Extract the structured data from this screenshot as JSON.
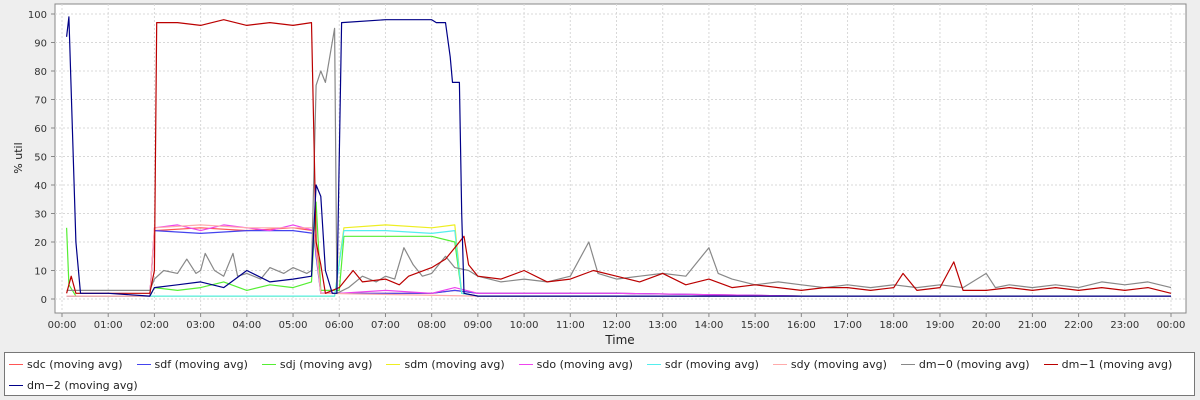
{
  "chart_data": {
    "type": "line",
    "title": "",
    "xlabel": "Time",
    "ylabel": "% util",
    "ylim": [
      0,
      100
    ],
    "yticks": [
      0,
      10,
      20,
      30,
      40,
      50,
      60,
      70,
      80,
      90,
      100
    ],
    "xlim_hours": [
      0,
      24
    ],
    "xticks": [
      "00:00",
      "01:00",
      "02:00",
      "03:00",
      "04:00",
      "05:00",
      "06:00",
      "07:00",
      "08:00",
      "09:00",
      "10:00",
      "11:00",
      "12:00",
      "13:00",
      "14:00",
      "15:00",
      "16:00",
      "17:00",
      "18:00",
      "19:00",
      "20:00",
      "21:00",
      "22:00",
      "23:00",
      "00:00"
    ],
    "grid": true,
    "legend_position": "bottom",
    "series": [
      {
        "name": "sdc (moving avg)",
        "color": "#ff5555",
        "points": [
          [
            0.1,
            1
          ],
          [
            1.9,
            1
          ],
          [
            2.0,
            24
          ],
          [
            3.0,
            25
          ],
          [
            4.0,
            24
          ],
          [
            5.0,
            25
          ],
          [
            5.45,
            24
          ],
          [
            5.5,
            20
          ],
          [
            5.6,
            2
          ],
          [
            6.0,
            2
          ],
          [
            7.0,
            2
          ],
          [
            8.0,
            2
          ],
          [
            8.5,
            3
          ],
          [
            9.0,
            2
          ],
          [
            12.0,
            2
          ],
          [
            16.0,
            1
          ],
          [
            20.0,
            1
          ],
          [
            24.0,
            1
          ]
        ]
      },
      {
        "name": "sdf (moving avg)",
        "color": "#4444ee",
        "points": [
          [
            0.1,
            1
          ],
          [
            1.9,
            1
          ],
          [
            2.0,
            24
          ],
          [
            3.0,
            23
          ],
          [
            4.0,
            24
          ],
          [
            5.0,
            24
          ],
          [
            5.45,
            23
          ],
          [
            5.5,
            15
          ],
          [
            5.6,
            2
          ],
          [
            6.0,
            2
          ],
          [
            7.0,
            2
          ],
          [
            8.0,
            2
          ],
          [
            8.5,
            3
          ],
          [
            9.0,
            2
          ],
          [
            12.0,
            2
          ],
          [
            16.0,
            1
          ],
          [
            20.0,
            1
          ],
          [
            24.0,
            1
          ]
        ]
      },
      {
        "name": "sdj (moving avg)",
        "color": "#55ee33",
        "points": [
          [
            0.1,
            25
          ],
          [
            0.15,
            5
          ],
          [
            0.3,
            1
          ],
          [
            1.9,
            1
          ],
          [
            2.0,
            4
          ],
          [
            2.5,
            3
          ],
          [
            3.0,
            4
          ],
          [
            3.5,
            6
          ],
          [
            4.0,
            3
          ],
          [
            4.5,
            5
          ],
          [
            5.0,
            4
          ],
          [
            5.4,
            6
          ],
          [
            5.5,
            34
          ],
          [
            5.6,
            3
          ],
          [
            6.0,
            3
          ],
          [
            6.1,
            22
          ],
          [
            7.0,
            22
          ],
          [
            8.0,
            22
          ],
          [
            8.5,
            20
          ],
          [
            8.65,
            2
          ],
          [
            9.0,
            1
          ],
          [
            12.0,
            1
          ],
          [
            16.0,
            1
          ],
          [
            20.0,
            1
          ],
          [
            24.0,
            1
          ]
        ]
      },
      {
        "name": "sdm (moving avg)",
        "color": "#eeee22",
        "points": [
          [
            0.1,
            1
          ],
          [
            5.9,
            1
          ],
          [
            6.1,
            25
          ],
          [
            7.0,
            26
          ],
          [
            8.0,
            25
          ],
          [
            8.5,
            26
          ],
          [
            8.65,
            2
          ],
          [
            9.0,
            1
          ],
          [
            24.0,
            1
          ]
        ]
      },
      {
        "name": "sdo (moving avg)",
        "color": "#ee44ee",
        "points": [
          [
            0.1,
            1
          ],
          [
            1.9,
            1
          ],
          [
            2.0,
            25
          ],
          [
            2.5,
            26
          ],
          [
            3.0,
            24
          ],
          [
            3.5,
            26
          ],
          [
            4.0,
            25
          ],
          [
            4.5,
            24
          ],
          [
            5.0,
            26
          ],
          [
            5.45,
            24
          ],
          [
            5.6,
            2
          ],
          [
            6.0,
            2
          ],
          [
            7.0,
            3
          ],
          [
            8.0,
            2
          ],
          [
            8.5,
            4
          ],
          [
            9.0,
            2
          ],
          [
            12.0,
            2
          ],
          [
            16.0,
            1
          ],
          [
            20.0,
            1
          ],
          [
            24.0,
            1
          ]
        ]
      },
      {
        "name": "sdr (moving avg)",
        "color": "#55eeee",
        "points": [
          [
            0.1,
            1
          ],
          [
            5.9,
            1
          ],
          [
            6.1,
            24
          ],
          [
            7.0,
            24
          ],
          [
            8.0,
            23
          ],
          [
            8.5,
            24
          ],
          [
            8.65,
            2
          ],
          [
            9.0,
            1
          ],
          [
            24.0,
            1
          ]
        ]
      },
      {
        "name": "sdy (moving avg)",
        "color": "#ffaaaa",
        "points": [
          [
            0.1,
            1
          ],
          [
            1.9,
            1
          ],
          [
            2.0,
            25
          ],
          [
            3.0,
            26
          ],
          [
            4.0,
            25
          ],
          [
            5.0,
            25
          ],
          [
            5.45,
            25
          ],
          [
            5.6,
            2
          ],
          [
            9.0,
            1
          ],
          [
            24.0,
            1
          ]
        ]
      },
      {
        "name": "dm−0 (moving avg)",
        "color": "#888888",
        "points": [
          [
            0.1,
            3
          ],
          [
            1.9,
            3
          ],
          [
            2.0,
            7
          ],
          [
            2.2,
            10
          ],
          [
            2.5,
            9
          ],
          [
            2.7,
            14
          ],
          [
            2.9,
            9
          ],
          [
            3.0,
            10
          ],
          [
            3.1,
            16
          ],
          [
            3.3,
            10
          ],
          [
            3.5,
            8
          ],
          [
            3.7,
            16
          ],
          [
            3.8,
            8
          ],
          [
            4.0,
            9
          ],
          [
            4.3,
            7
          ],
          [
            4.5,
            11
          ],
          [
            4.8,
            9
          ],
          [
            5.0,
            11
          ],
          [
            5.3,
            9
          ],
          [
            5.4,
            10
          ],
          [
            5.5,
            75
          ],
          [
            5.6,
            80
          ],
          [
            5.7,
            76
          ],
          [
            5.9,
            95
          ],
          [
            5.95,
            2
          ],
          [
            6.2,
            4
          ],
          [
            6.5,
            8
          ],
          [
            6.8,
            6
          ],
          [
            7.0,
            8
          ],
          [
            7.2,
            7
          ],
          [
            7.4,
            18
          ],
          [
            7.6,
            12
          ],
          [
            7.8,
            8
          ],
          [
            8.0,
            9
          ],
          [
            8.3,
            15
          ],
          [
            8.5,
            11
          ],
          [
            8.8,
            10
          ],
          [
            9.0,
            8
          ],
          [
            9.5,
            6
          ],
          [
            10.0,
            7
          ],
          [
            10.5,
            6
          ],
          [
            11.0,
            8
          ],
          [
            11.4,
            20
          ],
          [
            11.6,
            9
          ],
          [
            12.0,
            7
          ],
          [
            12.5,
            8
          ],
          [
            13.0,
            9
          ],
          [
            13.5,
            8
          ],
          [
            14.0,
            18
          ],
          [
            14.2,
            9
          ],
          [
            14.5,
            7
          ],
          [
            15.0,
            5
          ],
          [
            15.5,
            6
          ],
          [
            16.0,
            5
          ],
          [
            16.5,
            4
          ],
          [
            17.0,
            5
          ],
          [
            17.5,
            4
          ],
          [
            18.0,
            5
          ],
          [
            18.5,
            4
          ],
          [
            19.0,
            5
          ],
          [
            19.5,
            4
          ],
          [
            20.0,
            9
          ],
          [
            20.2,
            4
          ],
          [
            20.5,
            5
          ],
          [
            21.0,
            4
          ],
          [
            21.5,
            5
          ],
          [
            22.0,
            4
          ],
          [
            22.5,
            6
          ],
          [
            23.0,
            5
          ],
          [
            23.5,
            6
          ],
          [
            24.0,
            4
          ]
        ]
      },
      {
        "name": "dm−1 (moving avg)",
        "color": "#bb0000",
        "points": [
          [
            0.1,
            2
          ],
          [
            0.2,
            8
          ],
          [
            0.3,
            2
          ],
          [
            1.0,
            2
          ],
          [
            1.9,
            2
          ],
          [
            2.0,
            10
          ],
          [
            2.05,
            97
          ],
          [
            2.5,
            97
          ],
          [
            3.0,
            96
          ],
          [
            3.5,
            98
          ],
          [
            4.0,
            96
          ],
          [
            4.5,
            97
          ],
          [
            5.0,
            96
          ],
          [
            5.4,
            97
          ],
          [
            5.5,
            20
          ],
          [
            5.6,
            12
          ],
          [
            5.7,
            2
          ],
          [
            6.0,
            4
          ],
          [
            6.3,
            10
          ],
          [
            6.5,
            6
          ],
          [
            7.0,
            7
          ],
          [
            7.3,
            5
          ],
          [
            7.5,
            8
          ],
          [
            8.0,
            11
          ],
          [
            8.3,
            14
          ],
          [
            8.5,
            18
          ],
          [
            8.7,
            22
          ],
          [
            8.8,
            12
          ],
          [
            9.0,
            8
          ],
          [
            9.5,
            7
          ],
          [
            10.0,
            10
          ],
          [
            10.5,
            6
          ],
          [
            11.0,
            7
          ],
          [
            11.5,
            10
          ],
          [
            12.0,
            8
          ],
          [
            12.5,
            6
          ],
          [
            13.0,
            9
          ],
          [
            13.5,
            5
          ],
          [
            14.0,
            7
          ],
          [
            14.5,
            4
          ],
          [
            15.0,
            5
          ],
          [
            15.5,
            4
          ],
          [
            16.0,
            3
          ],
          [
            16.5,
            4
          ],
          [
            17.0,
            4
          ],
          [
            17.5,
            3
          ],
          [
            18.0,
            4
          ],
          [
            18.2,
            9
          ],
          [
            18.5,
            3
          ],
          [
            19.0,
            4
          ],
          [
            19.3,
            13
          ],
          [
            19.5,
            3
          ],
          [
            20.0,
            3
          ],
          [
            20.5,
            4
          ],
          [
            21.0,
            3
          ],
          [
            21.5,
            4
          ],
          [
            22.0,
            3
          ],
          [
            22.5,
            4
          ],
          [
            23.0,
            3
          ],
          [
            23.5,
            4
          ],
          [
            24.0,
            2
          ]
        ]
      },
      {
        "name": "dm−2 (moving avg)",
        "color": "#000088",
        "points": [
          [
            0.1,
            92
          ],
          [
            0.15,
            99
          ],
          [
            0.3,
            20
          ],
          [
            0.4,
            2
          ],
          [
            1.0,
            2
          ],
          [
            1.9,
            1
          ],
          [
            2.0,
            4
          ],
          [
            2.5,
            5
          ],
          [
            3.0,
            6
          ],
          [
            3.5,
            4
          ],
          [
            4.0,
            10
          ],
          [
            4.5,
            6
          ],
          [
            5.0,
            7
          ],
          [
            5.4,
            8
          ],
          [
            5.5,
            40
          ],
          [
            5.6,
            36
          ],
          [
            5.7,
            10
          ],
          [
            5.85,
            2
          ],
          [
            5.95,
            2
          ],
          [
            6.05,
            97
          ],
          [
            7.0,
            98
          ],
          [
            8.0,
            98
          ],
          [
            8.1,
            97
          ],
          [
            8.3,
            97
          ],
          [
            8.4,
            85
          ],
          [
            8.45,
            76
          ],
          [
            8.6,
            76
          ],
          [
            8.65,
            30
          ],
          [
            8.7,
            2
          ],
          [
            9.0,
            1
          ],
          [
            12.0,
            1
          ],
          [
            16.0,
            1
          ],
          [
            20.0,
            1
          ],
          [
            24.0,
            1
          ]
        ]
      }
    ]
  }
}
